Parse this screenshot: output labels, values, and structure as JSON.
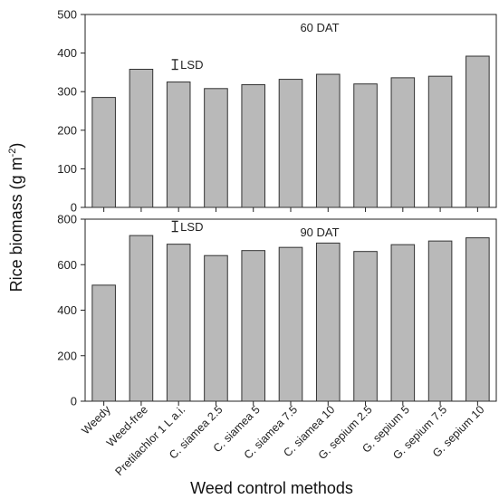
{
  "chart_data": {
    "type": "bar",
    "xlabel": "Weed control methods",
    "ylabel": "Rice biomass (g m",
    "ylabel_sup": "-2",
    "ylabel_close": ")",
    "categories": [
      "Weedy",
      "Weed-free",
      "Pretilachlor 1 L a.i.",
      "C. siamea 2.5",
      "C. siamea 5",
      "C. siamea 7.5",
      "C. siamea 10",
      "G. sepium 2.5",
      "G. sepium 5",
      "G. sepium 7.5",
      "G. sepium 10"
    ],
    "panels": [
      {
        "title": "60 DAT",
        "ylim": [
          0,
          500
        ],
        "yticks": [
          "0",
          "100",
          "200",
          "300",
          "400",
          "500"
        ],
        "values": [
          285,
          358,
          325,
          308,
          318,
          332,
          345,
          320,
          336,
          340,
          392
        ],
        "lsd_label": "LSD",
        "lsd_value": 25
      },
      {
        "title": "90 DAT",
        "ylim": [
          0,
          800
        ],
        "yticks": [
          "0",
          "200",
          "400",
          "600",
          "800"
        ],
        "values": [
          510,
          728,
          690,
          640,
          662,
          676,
          695,
          658,
          688,
          704,
          718
        ],
        "lsd_label": "LSD",
        "lsd_value": 45
      }
    ],
    "colors": {
      "bar_fill": "#b9b9b9",
      "bar_stroke": "#333333",
      "axis": "#222222"
    }
  }
}
